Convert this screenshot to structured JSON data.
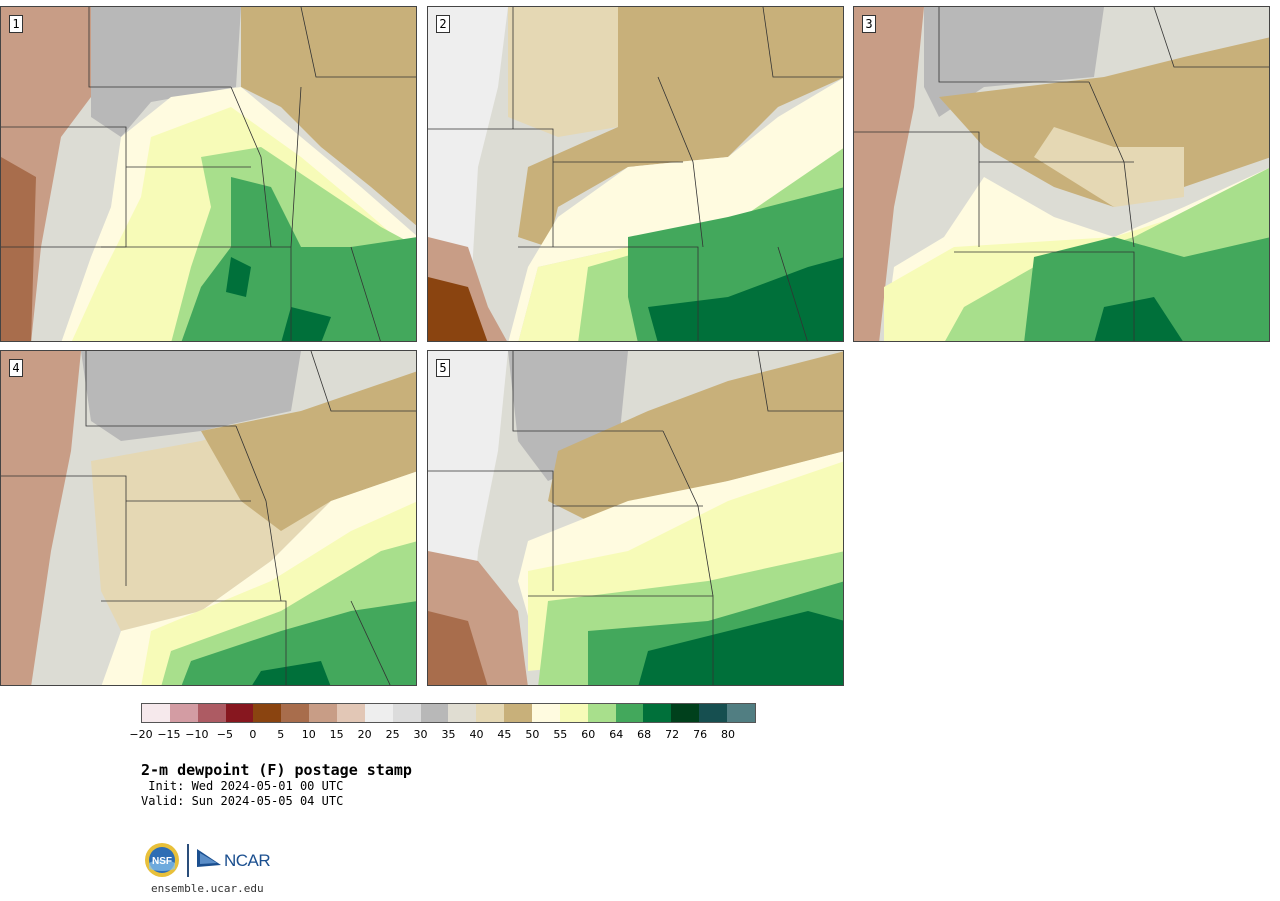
{
  "panels": [
    {
      "label": "1"
    },
    {
      "label": "2"
    },
    {
      "label": "3"
    },
    {
      "label": "4"
    },
    {
      "label": "5"
    }
  ],
  "legend": {
    "unit": "F",
    "colors": [
      "#f6e9ec",
      "#d39ca3",
      "#ad5b63",
      "#87171f",
      "#8a4410",
      "#a86d4c",
      "#c89d86",
      "#e2c7b6",
      "#eeeeee",
      "#dcdcdc",
      "#b8b8b8",
      "#e0ddd2",
      "#e5d8b4",
      "#c8b07a",
      "#fffbe0",
      "#f7fbb8",
      "#a8df8c",
      "#43a85c",
      "#00703a",
      "#00401c",
      "#164f50",
      "#517e82"
    ],
    "tick_labels": [
      "−20",
      "−15",
      "−10",
      "−5",
      "0",
      "5",
      "10",
      "15",
      "20",
      "25",
      "30",
      "35",
      "40",
      "45",
      "50",
      "55",
      "60",
      "64",
      "68",
      "72",
      "76",
      "80"
    ]
  },
  "title": "2-m dewpoint (F) postage stamp",
  "init": " Init: Wed 2024-05-01 00 UTC",
  "valid": "Valid: Sun 2024-05-05 04 UTC",
  "logo": {
    "nsf_text": "NSF",
    "ncar_text": "NCAR"
  },
  "website": "ensemble.ucar.edu"
}
